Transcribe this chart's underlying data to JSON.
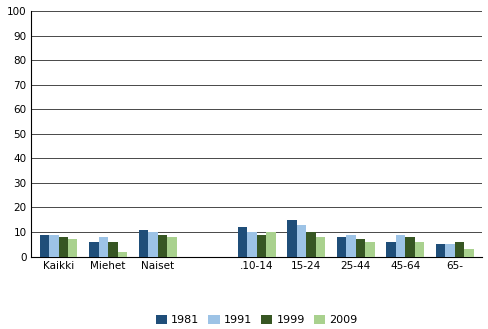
{
  "categories": [
    "Kaikki",
    "Miehet",
    "Naiset",
    "",
    ".10-14",
    "15-24",
    "25-44",
    "45-64",
    "65-"
  ],
  "series": {
    "1981": [
      9,
      6,
      11,
      0,
      12,
      15,
      8,
      6,
      5
    ],
    "1991": [
      9,
      8,
      10,
      0,
      10,
      13,
      9,
      9,
      5
    ],
    "1999": [
      8,
      6,
      9,
      0,
      9,
      10,
      7,
      8,
      6
    ],
    "2009": [
      7,
      2,
      8,
      0,
      10,
      8,
      6,
      6,
      3
    ]
  },
  "colors": {
    "1981": "#1F4E79",
    "1991": "#9DC3E6",
    "1999": "#375623",
    "2009": "#A9D18E"
  },
  "legend_labels": [
    "1981",
    "1991",
    "1999",
    "2009"
  ],
  "ylim": [
    0,
    100
  ],
  "yticks": [
    0,
    10,
    20,
    30,
    40,
    50,
    60,
    70,
    80,
    90,
    100
  ],
  "background_color": "#ffffff",
  "bar_width": 0.19,
  "figsize": [
    4.89,
    3.29
  ],
  "dpi": 100
}
